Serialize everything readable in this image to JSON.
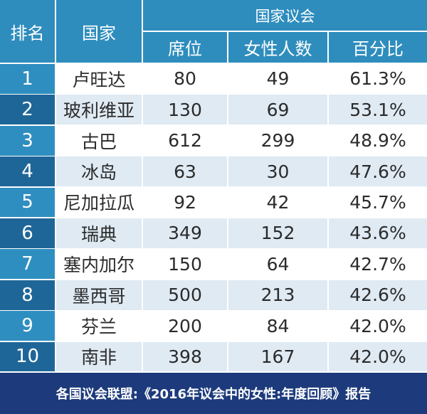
{
  "chart_data": {
    "type": "table",
    "group_header": "国家议会",
    "columns": {
      "rank": "排名",
      "country": "国家",
      "seats": "席位",
      "women": "女性人数",
      "percent": "百分比"
    },
    "rows": [
      {
        "rank": "1",
        "country": "卢旺达",
        "seats": "80",
        "women": "49",
        "percent": "61.3%"
      },
      {
        "rank": "2",
        "country": "玻利维亚",
        "seats": "130",
        "women": "69",
        "percent": "53.1%"
      },
      {
        "rank": "3",
        "country": "古巴",
        "seats": "612",
        "women": "299",
        "percent": "48.9%"
      },
      {
        "rank": "4",
        "country": "冰岛",
        "seats": "63",
        "women": "30",
        "percent": "47.6%"
      },
      {
        "rank": "5",
        "country": "尼加拉瓜",
        "seats": "92",
        "women": "42",
        "percent": "45.7%"
      },
      {
        "rank": "6",
        "country": "瑞典",
        "seats": "349",
        "women": "152",
        "percent": "43.6%"
      },
      {
        "rank": "7",
        "country": "塞内加尔",
        "seats": "150",
        "women": "64",
        "percent": "42.7%"
      },
      {
        "rank": "8",
        "country": "墨西哥",
        "seats": "500",
        "women": "213",
        "percent": "42.6%"
      },
      {
        "rank": "9",
        "country": "芬兰",
        "seats": "200",
        "women": "84",
        "percent": "42.0%"
      },
      {
        "rank": "10",
        "country": "南非",
        "seats": "398",
        "women": "167",
        "percent": "42.0%"
      }
    ],
    "source": "各国议会联盟:《2016年议会中的女性:年度回顾》报告"
  },
  "colors": {
    "header": "#2e8dbd",
    "rank_odd": "#2f8ec0",
    "rank_even": "#1f6698",
    "row_even": "#dfeaf3",
    "footer": "#1d3b7c"
  }
}
